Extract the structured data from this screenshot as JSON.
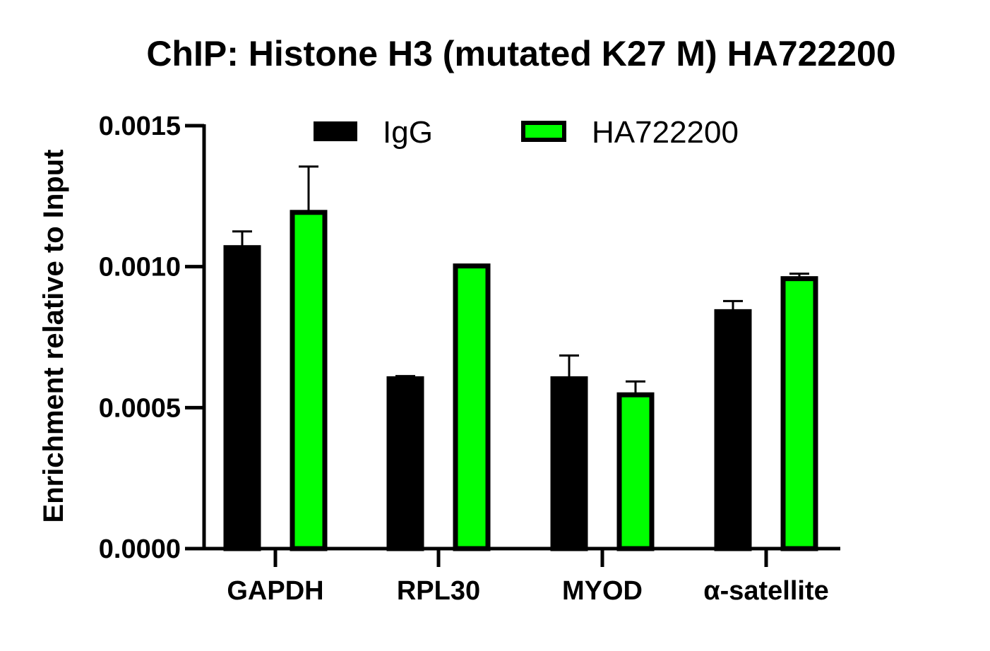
{
  "chart_data": {
    "type": "bar",
    "title": "ChIP: Histone H3 (mutated K27 M) HA722200",
    "xlabel": "",
    "ylabel": "Enrichment relative to Input",
    "categories": [
      "GAPDH",
      "RPL30",
      "MYOD",
      "α-satellite"
    ],
    "series": [
      {
        "name": "IgG",
        "values": [
          0.001075,
          0.00061,
          0.00061,
          0.000848
        ],
        "errors": [
          5e-05,
          2e-06,
          7.5e-05,
          3e-05
        ]
      },
      {
        "name": "HA722200",
        "values": [
          0.0012,
          0.00101,
          0.000553,
          0.000965
        ],
        "errors": [
          0.000155,
          0.0,
          4e-05,
          1e-05
        ]
      }
    ],
    "ylim": [
      0,
      0.0015
    ],
    "yticks": [
      "0.0000",
      "0.0005",
      "0.0010",
      "0.0015"
    ],
    "grid": false,
    "legend_position": "top"
  },
  "colors": {
    "IgG": "#000000",
    "HA722200": "#00ff00",
    "axis": "#000000",
    "bar_outline": "#000000"
  }
}
